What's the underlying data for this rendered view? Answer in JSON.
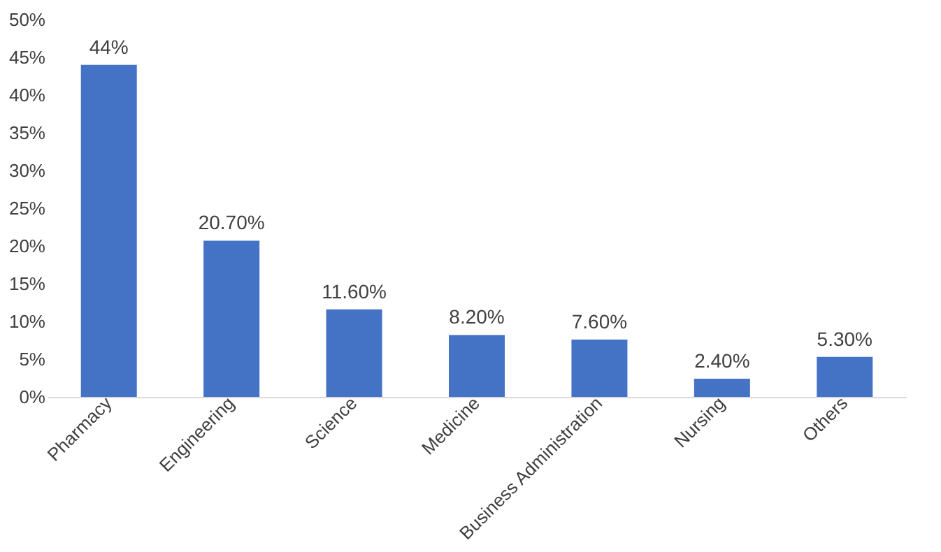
{
  "chart_data": {
    "type": "bar",
    "categories": [
      "Pharmacy",
      "Engineering",
      "Science",
      "Medicine",
      "Business Administration",
      "Nursing",
      "Others"
    ],
    "values": [
      44,
      20.7,
      11.6,
      8.2,
      7.6,
      2.4,
      5.3
    ],
    "value_labels": [
      "44%",
      "20.70%",
      "11.60%",
      "8.20%",
      "7.60%",
      "2.40%",
      "5.30%"
    ],
    "color": "#4472c4",
    "ylim": [
      0,
      50
    ],
    "yticks": [
      {
        "value": 0,
        "label": "0%"
      },
      {
        "value": 5,
        "label": "5%"
      },
      {
        "value": 10,
        "label": "10%"
      },
      {
        "value": 15,
        "label": "15%"
      },
      {
        "value": 20,
        "label": "20%"
      },
      {
        "value": 25,
        "label": "25%"
      },
      {
        "value": 30,
        "label": "30%"
      },
      {
        "value": 35,
        "label": "35%"
      },
      {
        "value": 40,
        "label": "40%"
      },
      {
        "value": 45,
        "label": "45%"
      },
      {
        "value": 50,
        "label": "50%"
      }
    ],
    "grid": false
  }
}
